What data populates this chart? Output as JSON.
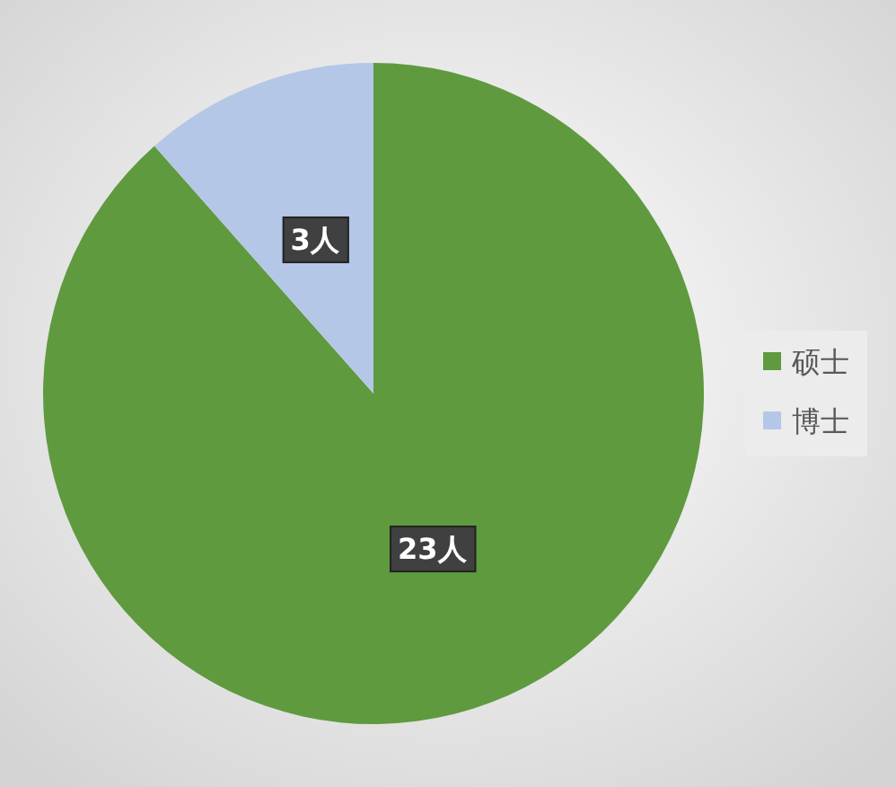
{
  "chart_data": {
    "type": "pie",
    "categories": [
      "硕士",
      "博士"
    ],
    "values": [
      23,
      3
    ],
    "colors": [
      "#5f9a3f",
      "#b4c7e7"
    ],
    "value_labels": [
      "23人",
      "3人"
    ],
    "legend": "right"
  }
}
